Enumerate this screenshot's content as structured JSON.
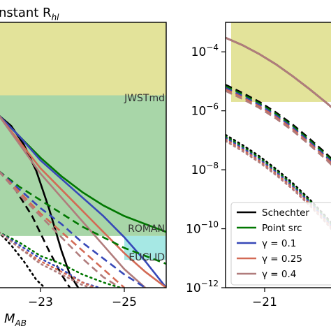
{
  "chart_data": [
    {
      "type": "line",
      "panel": "left",
      "title": "nstant R",
      "title_sub": "hl",
      "xlabel": "M",
      "xlabel_sub": "AB",
      "x_ticks": [
        -23,
        -25
      ],
      "x_tick_labels": [
        "−23",
        "−25"
      ],
      "xlim": [
        -22.0,
        -26.0
      ],
      "ylim": [
        0.0,
        1.0
      ],
      "y_scale_note": "unlabeled",
      "bands": [
        {
          "name": "JWSTmd",
          "label": "JWSTmd",
          "y_bottom": 0.725,
          "y_top": 1.0,
          "x_from": -22.0,
          "color": "#e3e39a"
        },
        {
          "name": "ROMAN",
          "label": "ROMAN",
          "y_bottom": 0.195,
          "y_top": 0.725,
          "x_from": -22.0,
          "color": "#a8d6a8"
        },
        {
          "name": "EUCLID",
          "label": "EUCLID",
          "y_bottom": 0.105,
          "y_top": 0.195,
          "x_from": -25.0,
          "color": "#a6e8e4"
        }
      ],
      "series": [
        {
          "name": "Schechter",
          "style": "solid",
          "color": "#000000",
          "x": [
            -22.0,
            -22.3,
            -22.6,
            -22.9,
            -23.2,
            -23.5,
            -23.7,
            -23.9
          ],
          "y": [
            0.65,
            0.61,
            0.54,
            0.44,
            0.3,
            0.14,
            0.05,
            0.0
          ]
        },
        {
          "name": "Point src",
          "style": "solid",
          "color": "#007700",
          "x": [
            -22.0,
            -22.5,
            -23.0,
            -23.5,
            -24.0,
            -24.5,
            -25.0,
            -25.5,
            -26.0
          ],
          "y": [
            0.65,
            0.57,
            0.49,
            0.42,
            0.36,
            0.31,
            0.27,
            0.24,
            0.21
          ]
        },
        {
          "name": "γ = 0.1",
          "style": "solid",
          "color": "#3748b8",
          "x": [
            -22.0,
            -22.5,
            -23.0,
            -23.5,
            -24.0,
            -24.5,
            -25.0,
            -25.5,
            -26.0
          ],
          "y": [
            0.65,
            0.57,
            0.48,
            0.41,
            0.34,
            0.27,
            0.19,
            0.1,
            0.0
          ]
        },
        {
          "name": "γ = 0.25",
          "style": "solid",
          "color": "#d36a55",
          "x": [
            -22.0,
            -22.5,
            -23.0,
            -23.5,
            -24.0,
            -24.5,
            -25.0,
            -25.5,
            -26.0
          ],
          "y": [
            0.65,
            0.55,
            0.45,
            0.37,
            0.29,
            0.21,
            0.13,
            0.06,
            0.0
          ]
        },
        {
          "name": "γ = 0.4",
          "style": "solid",
          "color": "#b07c7c",
          "x": [
            -22.0,
            -22.5,
            -23.0,
            -23.5,
            -24.0,
            -24.5,
            -25.0,
            -25.5
          ],
          "y": [
            0.65,
            0.54,
            0.43,
            0.34,
            0.25,
            0.16,
            0.07,
            0.0
          ]
        },
        {
          "name": "Schechter dashed",
          "style": "dashed",
          "color": "#000000",
          "x": [
            -22.0,
            -22.4,
            -22.8,
            -23.2,
            -23.5,
            -23.7
          ],
          "y": [
            0.44,
            0.37,
            0.27,
            0.14,
            0.05,
            0.0
          ]
        },
        {
          "name": "Point src dashed",
          "style": "dashed",
          "color": "#007700",
          "x": [
            -22.0,
            -22.5,
            -23.0,
            -23.5,
            -24.0,
            -24.5,
            -25.0,
            -25.5,
            -26.0
          ],
          "y": [
            0.44,
            0.38,
            0.33,
            0.28,
            0.23,
            0.19,
            0.15,
            0.12,
            0.09
          ]
        },
        {
          "name": "γ = 0.1 dashed",
          "style": "dashed",
          "color": "#3748b8",
          "x": [
            -22.0,
            -22.5,
            -23.0,
            -23.5,
            -24.0,
            -24.5,
            -25.0,
            -25.5
          ],
          "y": [
            0.44,
            0.37,
            0.3,
            0.24,
            0.17,
            0.11,
            0.05,
            0.0
          ]
        },
        {
          "name": "γ = 0.25 dashed",
          "style": "dashed",
          "color": "#d36a55",
          "x": [
            -22.0,
            -22.5,
            -23.0,
            -23.5,
            -24.0,
            -24.5,
            -25.0
          ],
          "y": [
            0.44,
            0.36,
            0.28,
            0.21,
            0.14,
            0.07,
            0.0
          ]
        },
        {
          "name": "γ = 0.4 dashed",
          "style": "dashed",
          "color": "#b07c7c",
          "x": [
            -22.0,
            -22.5,
            -23.0,
            -23.5,
            -24.0,
            -24.5,
            -24.9
          ],
          "y": [
            0.44,
            0.35,
            0.27,
            0.19,
            0.11,
            0.04,
            0.0
          ]
        },
        {
          "name": "Schechter dotted",
          "style": "dotted",
          "color": "#000000",
          "x": [
            -22.0,
            -22.3,
            -22.6,
            -22.9,
            -23.1
          ],
          "y": [
            0.21,
            0.16,
            0.1,
            0.03,
            0.0
          ]
        },
        {
          "name": "Point src dotted",
          "style": "dotted",
          "color": "#007700",
          "x": [
            -22.0,
            -22.5,
            -23.0,
            -23.5,
            -24.0,
            -24.5,
            -24.9
          ],
          "y": [
            0.21,
            0.17,
            0.12,
            0.09,
            0.05,
            0.02,
            0.0
          ]
        },
        {
          "name": "γ = 0.1 dotted",
          "style": "dotted",
          "color": "#3748b8",
          "x": [
            -22.0,
            -22.5,
            -23.0,
            -23.5,
            -24.0,
            -24.4
          ],
          "y": [
            0.21,
            0.16,
            0.11,
            0.07,
            0.02,
            0.0
          ]
        },
        {
          "name": "γ = 0.25 dotted",
          "style": "dotted",
          "color": "#d36a55",
          "x": [
            -22.0,
            -22.5,
            -23.0,
            -23.5,
            -24.0,
            -24.3
          ],
          "y": [
            0.21,
            0.15,
            0.1,
            0.06,
            0.02,
            0.0
          ]
        },
        {
          "name": "γ = 0.4 dotted",
          "style": "dotted",
          "color": "#b07c7c",
          "x": [
            -22.0,
            -22.5,
            -23.0,
            -23.5,
            -24.0,
            -24.2
          ],
          "y": [
            0.21,
            0.15,
            0.09,
            0.05,
            0.01,
            0.0
          ]
        }
      ]
    },
    {
      "type": "line",
      "panel": "right",
      "y_scale": "log",
      "xlim": [
        -19.6,
        -23.6
      ],
      "ylim": [
        1e-12,
        0.001
      ],
      "x_ticks": [
        -21
      ],
      "x_tick_labels": [
        "−21"
      ],
      "y_ticks": [
        0.0001,
        1e-06,
        1e-08,
        1e-10,
        1e-12
      ],
      "y_tick_labels": [
        {
          "base": "10",
          "exp": "−4"
        },
        {
          "base": "10",
          "exp": "−6"
        },
        {
          "base": "10",
          "exp": "−8"
        },
        {
          "base": "10",
          "exp": "−10"
        },
        {
          "base": "10",
          "exp": "−12"
        }
      ],
      "bands": [
        {
          "name": "JWSTmd",
          "y_bottom": 2e-06,
          "y_top": 0.001,
          "x_from": -19.8,
          "color": "#e3e39a"
        }
      ],
      "series": [
        {
          "name": "Schechter",
          "style": "solid",
          "color": "#000000",
          "x": [
            -19.6,
            -20.2,
            -20.8,
            -21.4,
            -22.0,
            -22.6,
            -23.2,
            -23.6
          ],
          "y": [
            0.0003,
            0.00017,
            8.5e-05,
            3.8e-05,
            1.5e-05,
            5.5e-06,
            1.9e-06,
            9e-07
          ]
        },
        {
          "name": "Point src",
          "style": "solid",
          "color": "#007700",
          "x": [
            -19.6,
            -20.2,
            -20.8,
            -21.4,
            -22.0,
            -22.6,
            -23.2,
            -23.6
          ],
          "y": [
            0.0003,
            0.00017,
            8.5e-05,
            3.8e-05,
            1.5e-05,
            5.5e-06,
            1.9e-06,
            9e-07
          ]
        },
        {
          "name": "γ = 0.1",
          "style": "solid",
          "color": "#3748b8",
          "x": [
            -19.6,
            -20.2,
            -20.8,
            -21.4,
            -22.0,
            -22.6,
            -23.2,
            -23.6
          ],
          "y": [
            0.0003,
            0.00017,
            8.5e-05,
            3.8e-05,
            1.5e-05,
            5.5e-06,
            1.9e-06,
            9e-07
          ]
        },
        {
          "name": "γ = 0.25",
          "style": "solid",
          "color": "#d36a55",
          "x": [
            -19.6,
            -20.2,
            -20.8,
            -21.4,
            -22.0,
            -22.6,
            -23.2,
            -23.6
          ],
          "y": [
            0.0003,
            0.00017,
            8.5e-05,
            3.8e-05,
            1.5e-05,
            5.5e-06,
            1.9e-06,
            9e-07
          ]
        },
        {
          "name": "γ = 0.4",
          "style": "solid",
          "color": "#b07c7c",
          "x": [
            -19.6,
            -20.2,
            -20.8,
            -21.4,
            -22.0,
            -22.6,
            -23.2,
            -23.6
          ],
          "y": [
            0.0003,
            0.00017,
            8.5e-05,
            3.8e-05,
            1.5e-05,
            5.5e-06,
            1.9e-06,
            9e-07
          ]
        },
        {
          "name": "dashed group",
          "style": "dashed",
          "colors": [
            "#000000",
            "#007700",
            "#3748b8",
            "#d36a55",
            "#b07c7c"
          ],
          "x": [
            -19.6,
            -20.2,
            -20.8,
            -21.4,
            -22.0,
            -22.6,
            -23.2,
            -23.6
          ],
          "y": [
            6e-06,
            3.2e-06,
            1.6e-06,
            7e-07,
            2.7e-07,
            9e-08,
            2.8e-08,
            1.2e-08
          ]
        },
        {
          "name": "dotted group",
          "style": "dotted",
          "colors": [
            "#000000",
            "#007700",
            "#3748b8",
            "#d36a55",
            "#b07c7c"
          ],
          "x": [
            -19.6,
            -20.2,
            -20.8,
            -21.4,
            -22.0,
            -22.6,
            -23.2,
            -23.6
          ],
          "y": [
            1.2e-07,
            5.5e-08,
            2.3e-08,
            8.5e-09,
            2.8e-09,
            8e-10,
            2e-10,
            7e-11
          ]
        }
      ],
      "legend": {
        "placement": "lower-right",
        "entries": [
          {
            "label": "Schechter",
            "color": "#000000"
          },
          {
            "label": "Point src",
            "color": "#007700"
          },
          {
            "label": "γ = 0.1",
            "color": "#3748b8"
          },
          {
            "label": "γ = 0.25",
            "color": "#d36a55"
          },
          {
            "label": "γ = 0.4",
            "color": "#b07c7c"
          }
        ]
      }
    }
  ]
}
